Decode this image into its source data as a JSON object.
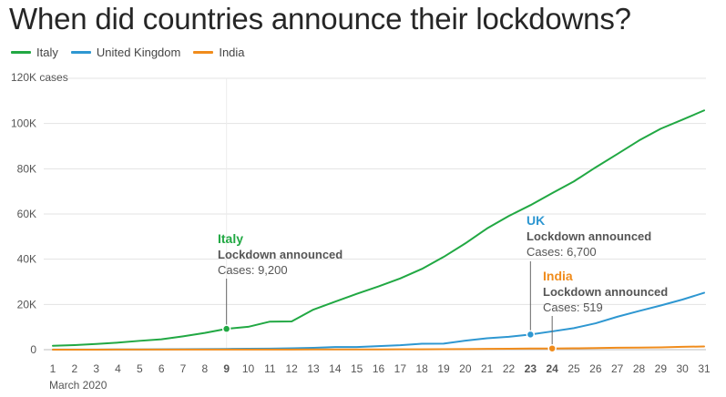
{
  "chart_data": {
    "type": "line",
    "title": "When did countries announce their lockdowns?",
    "xlabel": "March 2020",
    "ylabel": "cases",
    "x": [
      1,
      2,
      3,
      4,
      5,
      6,
      7,
      8,
      9,
      10,
      11,
      12,
      13,
      14,
      15,
      16,
      17,
      18,
      19,
      20,
      21,
      22,
      23,
      24,
      25,
      26,
      27,
      28,
      29,
      30,
      31
    ],
    "ylim": [
      0,
      120000
    ],
    "y_ticks": [
      {
        "value": 0,
        "label": "0"
      },
      {
        "value": 20000,
        "label": "20K"
      },
      {
        "value": 40000,
        "label": "40K"
      },
      {
        "value": 60000,
        "label": "60K"
      },
      {
        "value": 80000,
        "label": "80K"
      },
      {
        "value": 100000,
        "label": "100K"
      },
      {
        "value": 120000,
        "label": "120K cases"
      }
    ],
    "bold_days": [
      9,
      23,
      24
    ],
    "series": [
      {
        "name": "Italy",
        "color": "#21a843",
        "values": [
          1700,
          2000,
          2500,
          3100,
          3900,
          4600,
          5900,
          7400,
          9200,
          10100,
          12400,
          12500,
          17700,
          21200,
          24700,
          27980,
          31500,
          35700,
          41000,
          47000,
          53600,
          59100,
          63900,
          69200,
          74400,
          80600,
          86500,
          92500,
          97700,
          101700,
          105800
        ]
      },
      {
        "name": "United Kingdom",
        "color": "#2e97d1",
        "values": [
          36,
          40,
          51,
          85,
          115,
          163,
          206,
          273,
          321,
          382,
          456,
          590,
          798,
          1140,
          1140,
          1543,
          1950,
          2626,
          2689,
          3983,
          5018,
          5683,
          6700,
          8077,
          9529,
          11658,
          14543,
          17089,
          19522,
          22141,
          25150
        ]
      },
      {
        "name": "India",
        "color": "#f08c1c",
        "values": [
          3,
          5,
          6,
          28,
          30,
          31,
          34,
          39,
          43,
          50,
          62,
          73,
          82,
          102,
          113,
          119,
          142,
          156,
          194,
          244,
          330,
          396,
          499,
          519,
          606,
          694,
          834,
          918,
          1024,
          1251,
          1397
        ]
      }
    ],
    "annotations": [
      {
        "series": "Italy",
        "day": 9,
        "value": 9200,
        "title": "Italy",
        "subtitle": "Lockdown announced",
        "cases": "Cases: 9,200"
      },
      {
        "series": "United Kingdom",
        "day": 23,
        "value": 6700,
        "title": "UK",
        "subtitle": "Lockdown announced",
        "cases": "Cases: 6,700"
      },
      {
        "series": "India",
        "day": 24,
        "value": 519,
        "title": "India",
        "subtitle": "Lockdown announced",
        "cases": "Cases: 519"
      }
    ]
  }
}
